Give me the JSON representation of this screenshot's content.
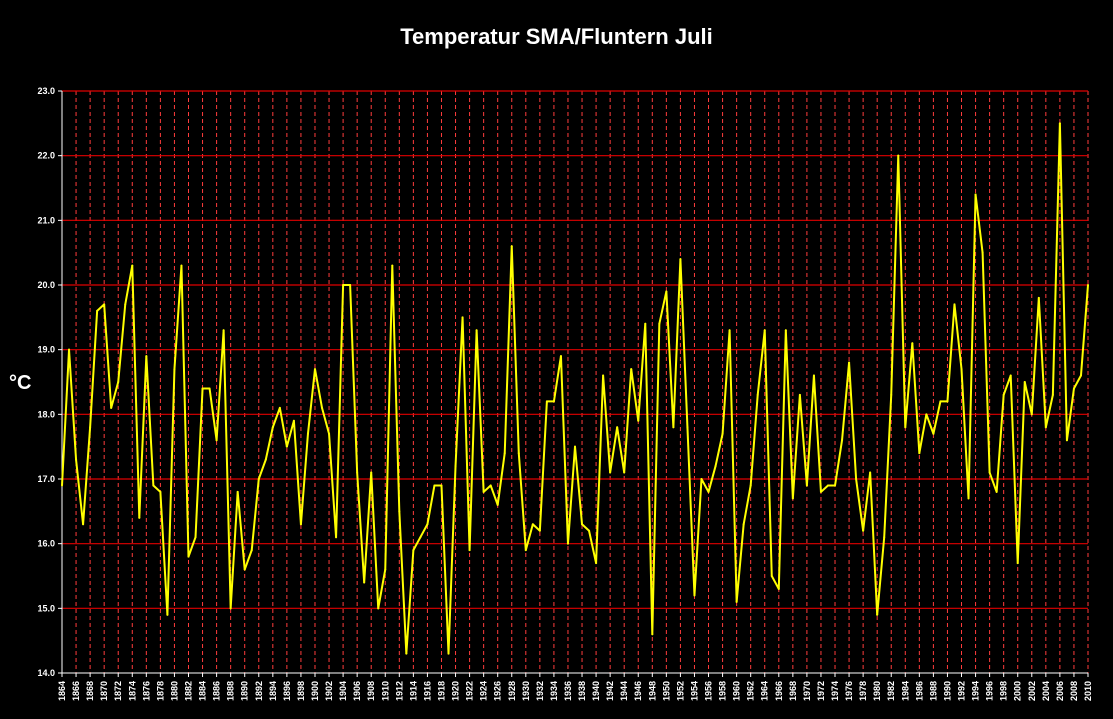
{
  "chart_data": {
    "type": "line",
    "title": "Temperatur SMA/Fluntern Juli",
    "xlabel": "",
    "ylabel": "°C",
    "ylim": [
      14.0,
      23.0
    ],
    "y_ticks": [
      "14.0",
      "15.0",
      "16.0",
      "17.0",
      "18.0",
      "19.0",
      "20.0",
      "21.0",
      "22.0",
      "23.0"
    ],
    "x_start": 1864,
    "x_end": 2010,
    "x_tick_step": 2,
    "grid": true,
    "legend": "none",
    "series": [
      {
        "color": "#ffff00",
        "x": [
          1864,
          1865,
          1866,
          1867,
          1868,
          1869,
          1870,
          1871,
          1872,
          1873,
          1874,
          1875,
          1876,
          1877,
          1878,
          1879,
          1880,
          1881,
          1882,
          1883,
          1884,
          1885,
          1886,
          1887,
          1888,
          1889,
          1890,
          1891,
          1892,
          1893,
          1894,
          1895,
          1896,
          1897,
          1898,
          1899,
          1900,
          1901,
          1902,
          1903,
          1904,
          1905,
          1906,
          1907,
          1908,
          1909,
          1910,
          1911,
          1912,
          1913,
          1914,
          1915,
          1916,
          1917,
          1918,
          1919,
          1920,
          1921,
          1922,
          1923,
          1924,
          1925,
          1926,
          1927,
          1928,
          1929,
          1930,
          1931,
          1932,
          1933,
          1934,
          1935,
          1936,
          1937,
          1938,
          1939,
          1940,
          1941,
          1942,
          1943,
          1944,
          1945,
          1946,
          1947,
          1948,
          1949,
          1950,
          1951,
          1952,
          1953,
          1954,
          1955,
          1956,
          1957,
          1958,
          1959,
          1960,
          1961,
          1962,
          1963,
          1964,
          1965,
          1966,
          1967,
          1968,
          1969,
          1970,
          1971,
          1972,
          1973,
          1974,
          1975,
          1976,
          1977,
          1978,
          1979,
          1980,
          1981,
          1982,
          1983,
          1984,
          1985,
          1986,
          1987,
          1988,
          1989,
          1990,
          1991,
          1992,
          1993,
          1994,
          1995,
          1996,
          1997,
          1998,
          1999,
          2000,
          2001,
          2002,
          2003,
          2004,
          2005,
          2006,
          2007,
          2008,
          2009,
          2010
        ],
        "values": [
          16.9,
          19.0,
          17.3,
          16.3,
          17.8,
          19.6,
          19.7,
          18.1,
          18.5,
          19.7,
          20.3,
          16.4,
          18.9,
          16.9,
          16.8,
          14.9,
          18.7,
          20.3,
          15.8,
          16.1,
          18.4,
          18.4,
          17.6,
          19.3,
          15.0,
          16.8,
          15.6,
          15.9,
          17.0,
          17.3,
          17.8,
          18.1,
          17.5,
          17.9,
          16.3,
          17.7,
          18.7,
          18.1,
          17.7,
          16.1,
          20.0,
          20.0,
          17.1,
          15.4,
          17.1,
          15.0,
          15.6,
          20.3,
          16.5,
          14.3,
          15.9,
          16.1,
          16.3,
          16.9,
          16.9,
          14.3,
          17.2,
          19.5,
          15.9,
          19.3,
          16.8,
          16.9,
          16.6,
          17.4,
          20.6,
          17.4,
          15.9,
          16.3,
          16.2,
          18.2,
          18.2,
          18.9,
          16.0,
          17.5,
          16.3,
          16.2,
          15.7,
          18.6,
          17.1,
          17.8,
          17.1,
          18.7,
          17.9,
          19.4,
          14.6,
          19.4,
          19.9,
          17.8,
          20.4,
          17.8,
          15.2,
          17.0,
          16.8,
          17.2,
          17.7,
          19.3,
          15.1,
          16.3,
          16.9,
          18.3,
          19.3,
          15.5,
          15.3,
          19.3,
          16.7,
          18.3,
          16.9,
          18.6,
          16.8,
          16.9,
          16.9,
          17.6,
          18.8,
          17.0,
          16.2,
          17.1,
          14.9,
          16.1,
          18.3,
          22.0,
          17.8,
          19.1,
          17.4,
          18.0,
          17.7,
          18.2,
          18.2,
          19.7,
          18.7,
          16.7,
          21.4,
          20.5,
          17.1,
          16.8,
          18.3,
          18.6,
          15.7,
          18.5,
          18.0,
          19.8,
          17.8,
          18.3,
          22.5,
          17.6,
          18.4,
          18.6,
          20.0
        ]
      }
    ]
  }
}
